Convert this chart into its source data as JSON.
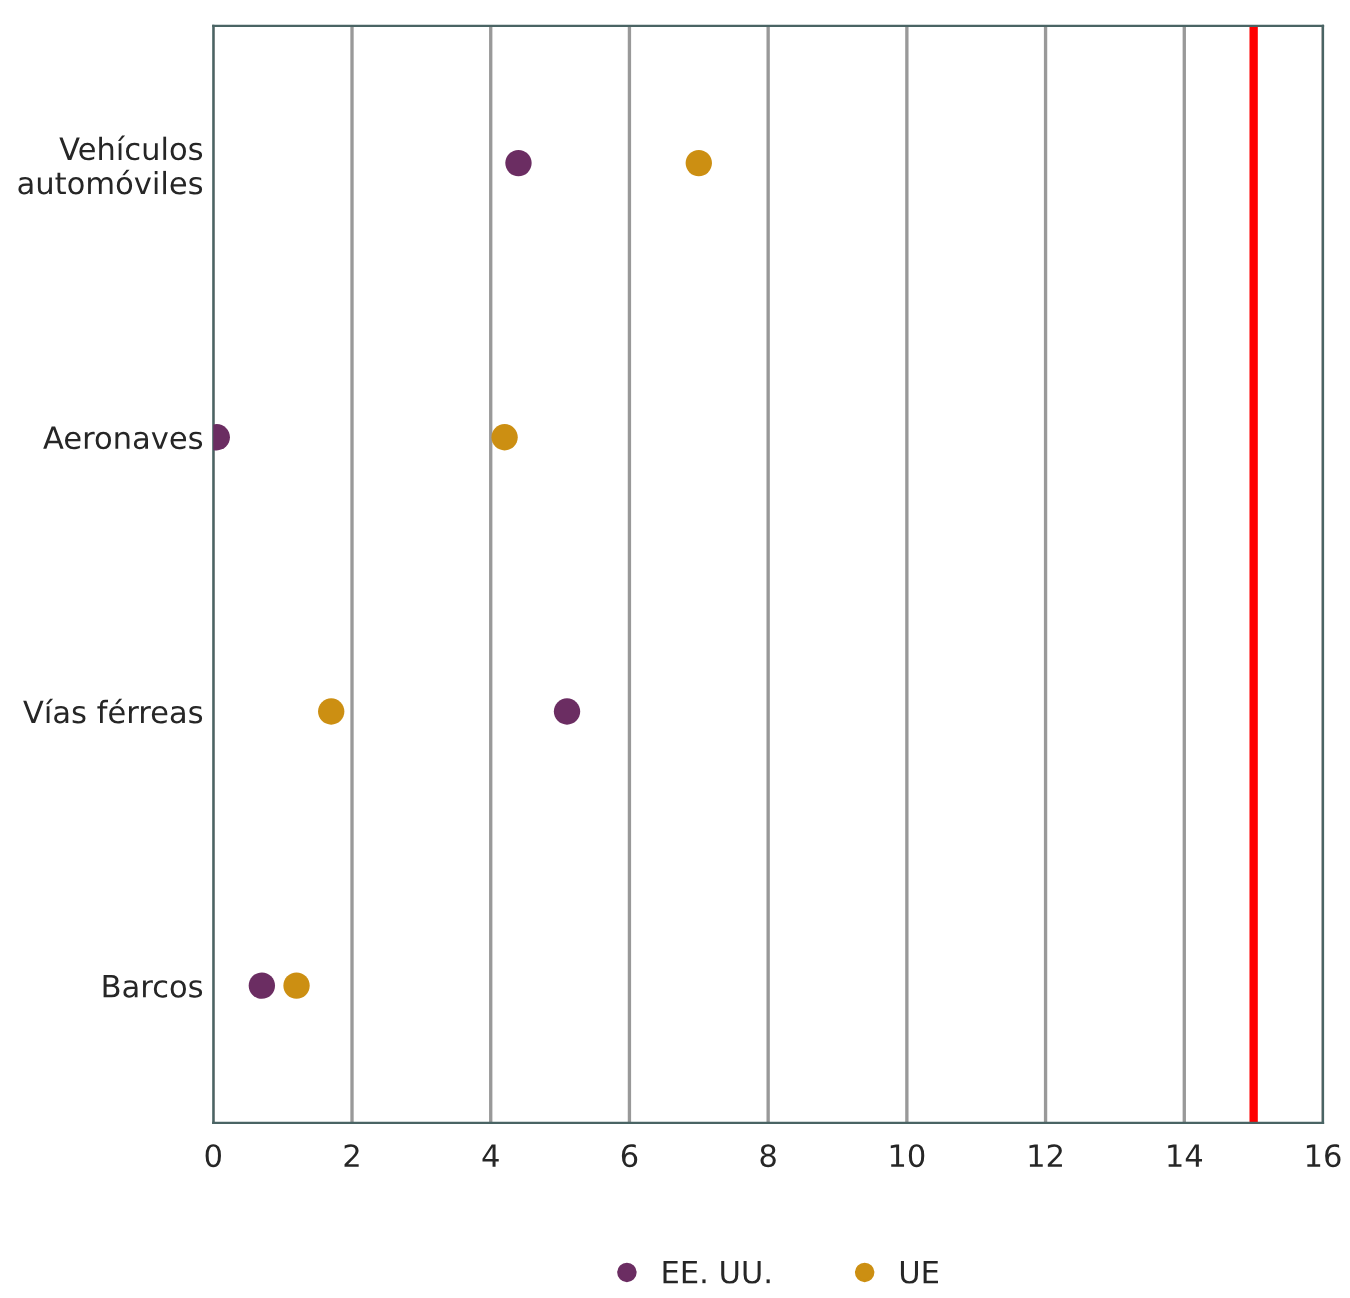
{
  "chart_data": {
    "type": "scatter",
    "orientation": "horizontal",
    "categories": [
      "Vehículos\nautomóviles",
      "Aeronaves",
      "Vías férreas",
      "Barcos"
    ],
    "series": [
      {
        "name": "EE. UU.",
        "color": "#6b2d62",
        "values": [
          4.4,
          0.05,
          5.1,
          0.7
        ]
      },
      {
        "name": "UE",
        "color": "#cc8f12",
        "values": [
          7.0,
          4.2,
          1.7,
          1.2
        ]
      }
    ],
    "xlim": [
      0,
      16
    ],
    "xticks": [
      0,
      2,
      4,
      6,
      8,
      10,
      12,
      14,
      16
    ],
    "grid": "x",
    "legend": "bottom",
    "marker": "circle",
    "ref_lines": [
      {
        "axis": "x",
        "value": 15,
        "color": "#ff0000"
      }
    ]
  }
}
